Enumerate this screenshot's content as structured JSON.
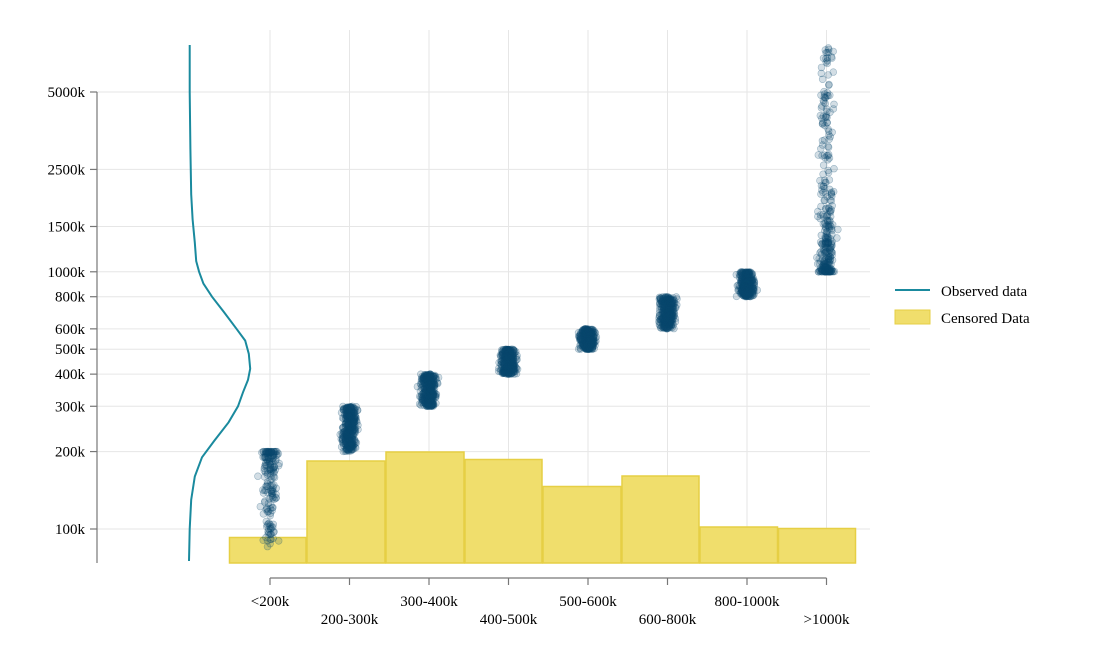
{
  "chart_data": {
    "type": "scatter",
    "y_scale": "log",
    "grid": true,
    "legend_position": "right",
    "y_ticks": [
      {
        "value": 100,
        "label": "100k"
      },
      {
        "value": 200,
        "label": "200k"
      },
      {
        "value": 300,
        "label": "300k"
      },
      {
        "value": 400,
        "label": "400k"
      },
      {
        "value": 500,
        "label": "500k"
      },
      {
        "value": 600,
        "label": "600k"
      },
      {
        "value": 800,
        "label": "800k"
      },
      {
        "value": 1000,
        "label": "1000k"
      },
      {
        "value": 1500,
        "label": "1500k"
      },
      {
        "value": 2500,
        "label": "2500k"
      },
      {
        "value": 5000,
        "label": "5000k"
      }
    ],
    "categories": [
      "<200k",
      "200-300k",
      "300-400k",
      "400-500k",
      "500-600k",
      "600-800k",
      "800-1000k",
      ">1000k"
    ],
    "series": [
      {
        "name": "Observed data",
        "kind": "density-line",
        "color": "#1a8a9e",
        "density": [
          [
            88,
            0.0
          ],
          [
            100,
            0.01
          ],
          [
            130,
            0.03
          ],
          [
            160,
            0.08
          ],
          [
            190,
            0.18
          ],
          [
            220,
            0.35
          ],
          [
            260,
            0.55
          ],
          [
            300,
            0.68
          ],
          [
            340,
            0.75
          ],
          [
            380,
            0.82
          ],
          [
            420,
            0.85
          ],
          [
            480,
            0.83
          ],
          [
            540,
            0.78
          ],
          [
            600,
            0.66
          ],
          [
            700,
            0.48
          ],
          [
            800,
            0.32
          ],
          [
            900,
            0.2
          ],
          [
            1000,
            0.14
          ],
          [
            1100,
            0.1
          ],
          [
            1300,
            0.08
          ],
          [
            1600,
            0.05
          ],
          [
            2000,
            0.03
          ],
          [
            3000,
            0.02
          ],
          [
            5000,
            0.01
          ],
          [
            7500,
            0.01
          ]
        ]
      },
      {
        "name": "Censored Data",
        "kind": "bar",
        "color": "#f0de6c",
        "values": [
          0.085,
          0.34,
          0.37,
          0.345,
          0.255,
          0.29,
          0.12,
          0.115
        ]
      }
    ],
    "points": {
      "color": "#0b4a6f",
      "groups": [
        {
          "category": "<200k",
          "ymin": 85,
          "ymax": 200
        },
        {
          "category": "200-300k",
          "ymin": 200,
          "ymax": 300
        },
        {
          "category": "300-400k",
          "ymin": 300,
          "ymax": 400
        },
        {
          "category": "400-500k",
          "ymin": 400,
          "ymax": 500
        },
        {
          "category": "500-600k",
          "ymin": 500,
          "ymax": 600
        },
        {
          "category": "600-800k",
          "ymin": 600,
          "ymax": 800
        },
        {
          "category": "800-1000k",
          "ymin": 800,
          "ymax": 1000
        },
        {
          "category": ">1000k",
          "ymin": 1000,
          "ymax": 7500
        }
      ]
    }
  },
  "legend": {
    "observed_label": "Observed data",
    "censored_label": "Censored Data"
  }
}
